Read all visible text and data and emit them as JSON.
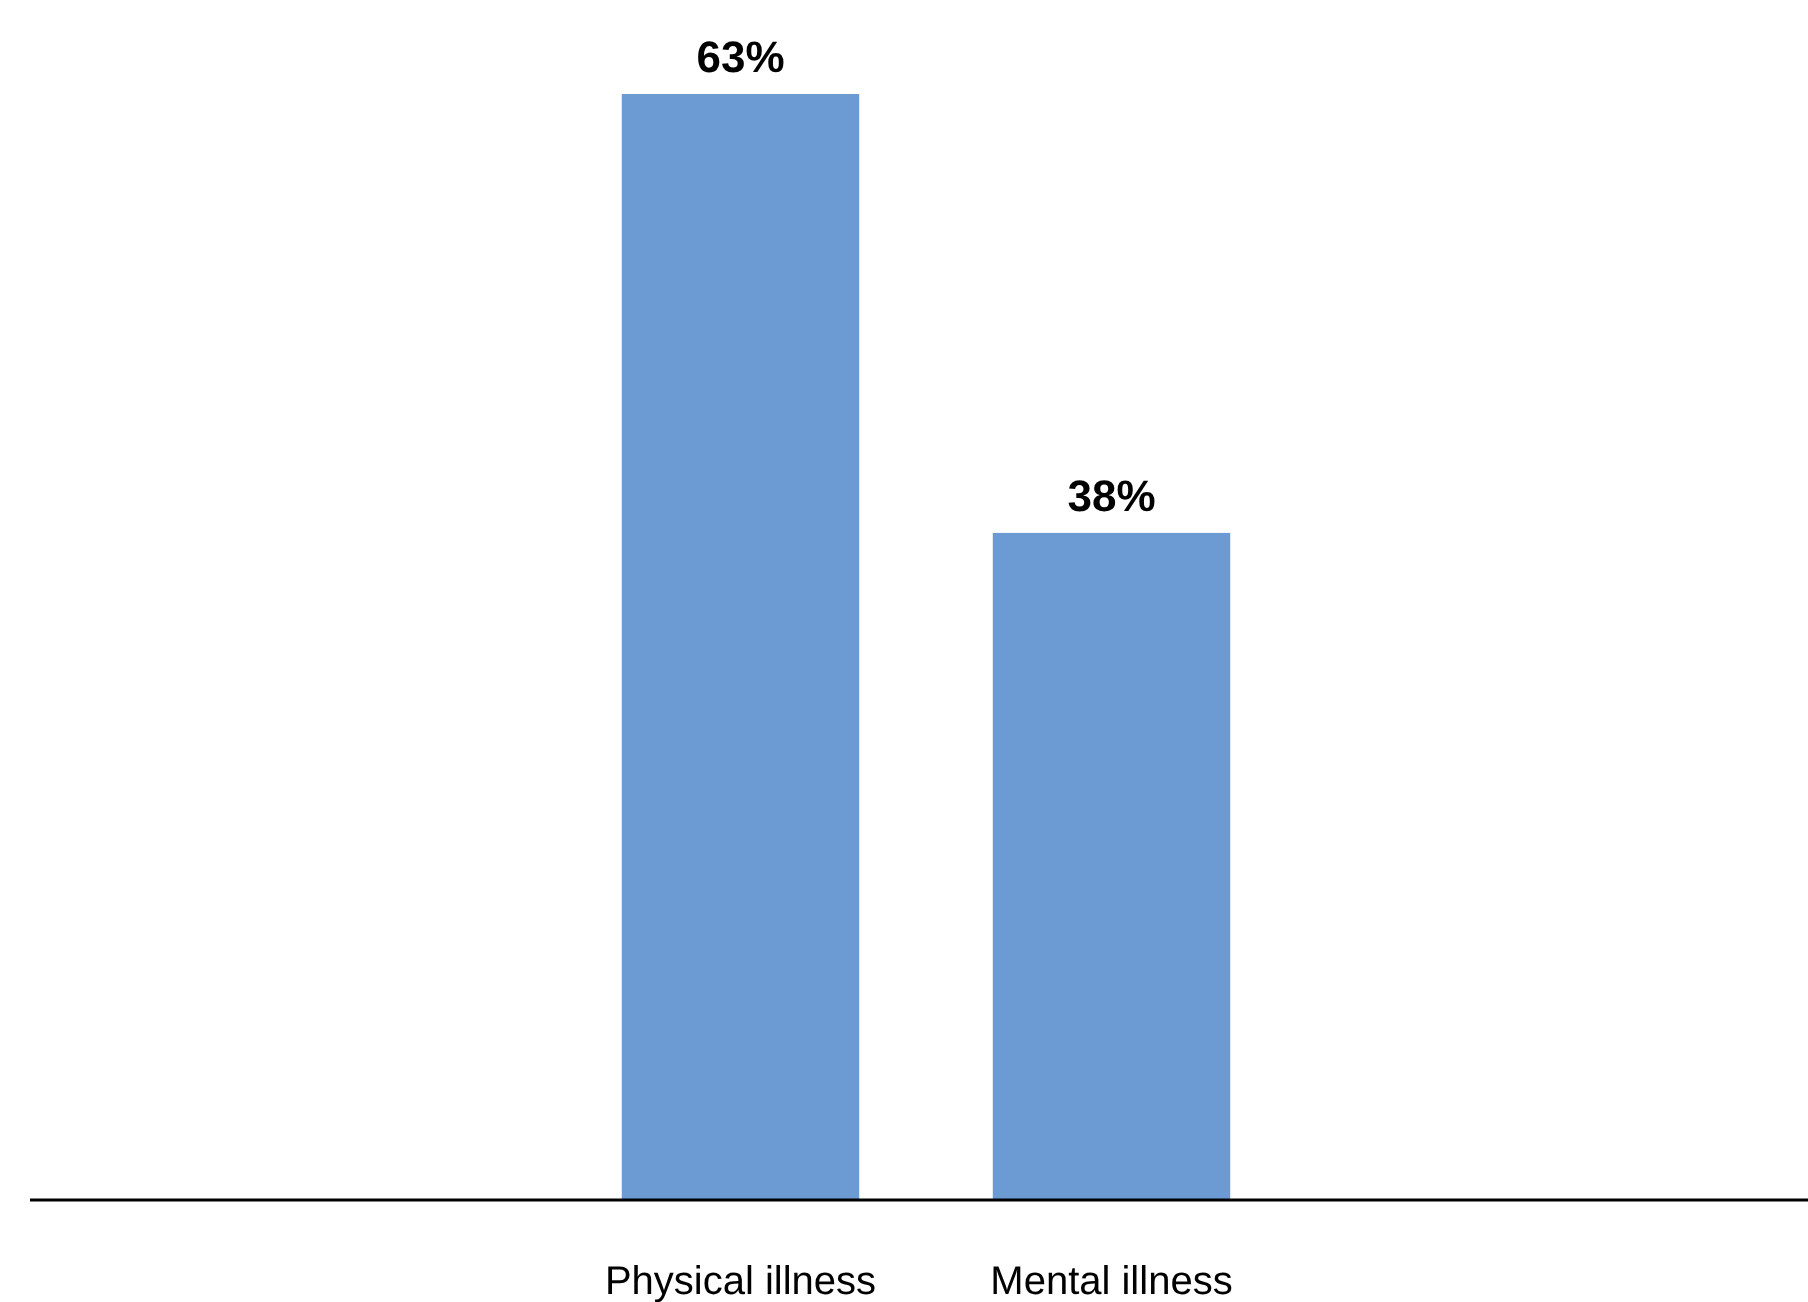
{
  "chart_data": {
    "type": "bar",
    "categories": [
      "Physical illness",
      "Mental illness"
    ],
    "values": [
      63,
      38
    ],
    "value_labels": [
      "63%",
      "38%"
    ],
    "color": "#6b9bd2"
  }
}
